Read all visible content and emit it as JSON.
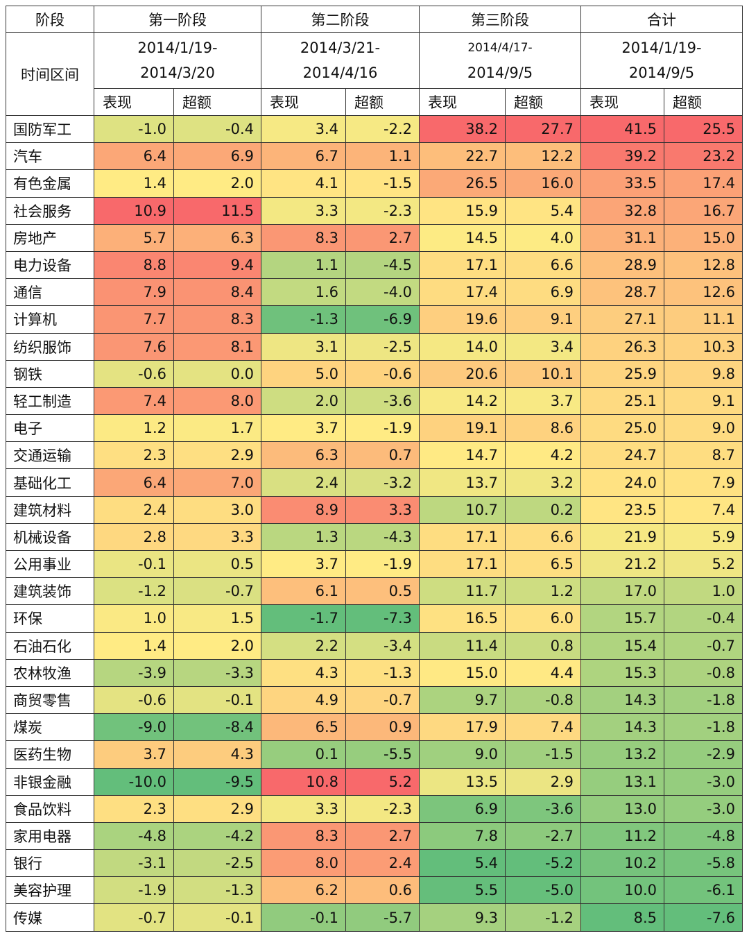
{
  "table": {
    "header": {
      "label": "阶段",
      "stages": [
        "第一阶段",
        "第二阶段",
        "第三阶段",
        "合计"
      ]
    },
    "period_row": {
      "label": "时间区间",
      "periods": [
        [
          "2014/1/19-",
          "2014/3/20"
        ],
        [
          "2014/3/21-",
          "2014/4/16"
        ],
        [
          "2014/4/17-",
          "2014/9/5"
        ],
        [
          "2014/1/19-",
          "2014/9/5"
        ]
      ]
    },
    "subheaders": [
      "表现",
      "超额",
      "表现",
      "超额",
      "表现",
      "超额",
      "表现",
      "超额"
    ],
    "color_scale": {
      "low": "#63be7b",
      "mid": "#ffeb84",
      "high": "#f8696b"
    },
    "rows": [
      [
        "国防军工",
        "-1.0",
        "-0.4",
        "3.4",
        "-2.2",
        "38.2",
        "27.7",
        "41.5",
        "25.5"
      ],
      [
        "汽车",
        "6.4",
        "6.9",
        "6.7",
        "1.1",
        "22.7",
        "12.2",
        "39.2",
        "23.2"
      ],
      [
        "有色金属",
        "1.4",
        "2.0",
        "4.1",
        "-1.5",
        "26.5",
        "16.0",
        "33.5",
        "17.4"
      ],
      [
        "社会服务",
        "10.9",
        "11.5",
        "3.3",
        "-2.3",
        "15.9",
        "5.4",
        "32.8",
        "16.7"
      ],
      [
        "房地产",
        "5.7",
        "6.3",
        "8.3",
        "2.7",
        "14.5",
        "4.0",
        "31.1",
        "15.0"
      ],
      [
        "电力设备",
        "8.8",
        "9.4",
        "1.1",
        "-4.5",
        "17.1",
        "6.6",
        "28.9",
        "12.8"
      ],
      [
        "通信",
        "7.9",
        "8.4",
        "1.6",
        "-4.0",
        "17.4",
        "6.9",
        "28.7",
        "12.6"
      ],
      [
        "计算机",
        "7.7",
        "8.3",
        "-1.3",
        "-6.9",
        "19.6",
        "9.1",
        "27.1",
        "11.1"
      ],
      [
        "纺织服饰",
        "7.6",
        "8.1",
        "3.1",
        "-2.5",
        "14.0",
        "3.4",
        "26.3",
        "10.3"
      ],
      [
        "钢铁",
        "-0.6",
        "0.0",
        "5.0",
        "-0.6",
        "20.6",
        "10.1",
        "25.9",
        "9.8"
      ],
      [
        "轻工制造",
        "7.4",
        "8.0",
        "2.0",
        "-3.6",
        "14.2",
        "3.7",
        "25.1",
        "9.1"
      ],
      [
        "电子",
        "1.2",
        "1.7",
        "3.7",
        "-1.9",
        "19.1",
        "8.6",
        "25.0",
        "9.0"
      ],
      [
        "交通运输",
        "2.3",
        "2.9",
        "6.3",
        "0.7",
        "14.7",
        "4.2",
        "24.7",
        "8.7"
      ],
      [
        "基础化工",
        "6.4",
        "7.0",
        "2.4",
        "-3.2",
        "13.7",
        "3.2",
        "24.0",
        "7.9"
      ],
      [
        "建筑材料",
        "2.4",
        "3.0",
        "8.9",
        "3.3",
        "10.7",
        "0.2",
        "23.5",
        "7.4"
      ],
      [
        "机械设备",
        "2.8",
        "3.3",
        "1.3",
        "-4.3",
        "17.1",
        "6.6",
        "21.9",
        "5.9"
      ],
      [
        "公用事业",
        "-0.1",
        "0.5",
        "3.7",
        "-1.9",
        "17.1",
        "6.5",
        "21.2",
        "5.2"
      ],
      [
        "建筑装饰",
        "-1.2",
        "-0.7",
        "6.1",
        "0.5",
        "11.7",
        "1.2",
        "17.0",
        "1.0"
      ],
      [
        "环保",
        "1.0",
        "1.5",
        "-1.7",
        "-7.3",
        "16.5",
        "6.0",
        "15.7",
        "-0.4"
      ],
      [
        "石油石化",
        "1.4",
        "2.0",
        "2.2",
        "-3.4",
        "11.4",
        "0.8",
        "15.4",
        "-0.7"
      ],
      [
        "农林牧渔",
        "-3.9",
        "-3.3",
        "4.3",
        "-1.3",
        "15.0",
        "4.4",
        "15.3",
        "-0.8"
      ],
      [
        "商贸零售",
        "-0.6",
        "-0.1",
        "4.9",
        "-0.7",
        "9.7",
        "-0.8",
        "14.3",
        "-1.8"
      ],
      [
        "煤炭",
        "-9.0",
        "-8.4",
        "6.5",
        "0.9",
        "17.9",
        "7.4",
        "14.3",
        "-1.8"
      ],
      [
        "医药生物",
        "3.7",
        "4.3",
        "0.1",
        "-5.5",
        "9.0",
        "-1.5",
        "13.2",
        "-2.9"
      ],
      [
        "非银金融",
        "-10.0",
        "-9.5",
        "10.8",
        "5.2",
        "13.5",
        "2.9",
        "13.1",
        "-3.0"
      ],
      [
        "食品饮料",
        "2.3",
        "2.9",
        "3.3",
        "-2.3",
        "6.9",
        "-3.6",
        "13.0",
        "-3.0"
      ],
      [
        "家用电器",
        "-4.8",
        "-4.2",
        "8.3",
        "2.7",
        "7.8",
        "-2.7",
        "11.2",
        "-4.8"
      ],
      [
        "银行",
        "-3.1",
        "-2.5",
        "8.0",
        "2.4",
        "5.4",
        "-5.2",
        "10.2",
        "-5.8"
      ],
      [
        "美容护理",
        "-1.9",
        "-1.3",
        "6.2",
        "0.6",
        "5.5",
        "-5.0",
        "10.0",
        "-6.1"
      ],
      [
        "传媒",
        "-0.7",
        "-0.1",
        "-0.1",
        "-5.7",
        "9.3",
        "-1.2",
        "8.5",
        "-7.6"
      ]
    ]
  }
}
